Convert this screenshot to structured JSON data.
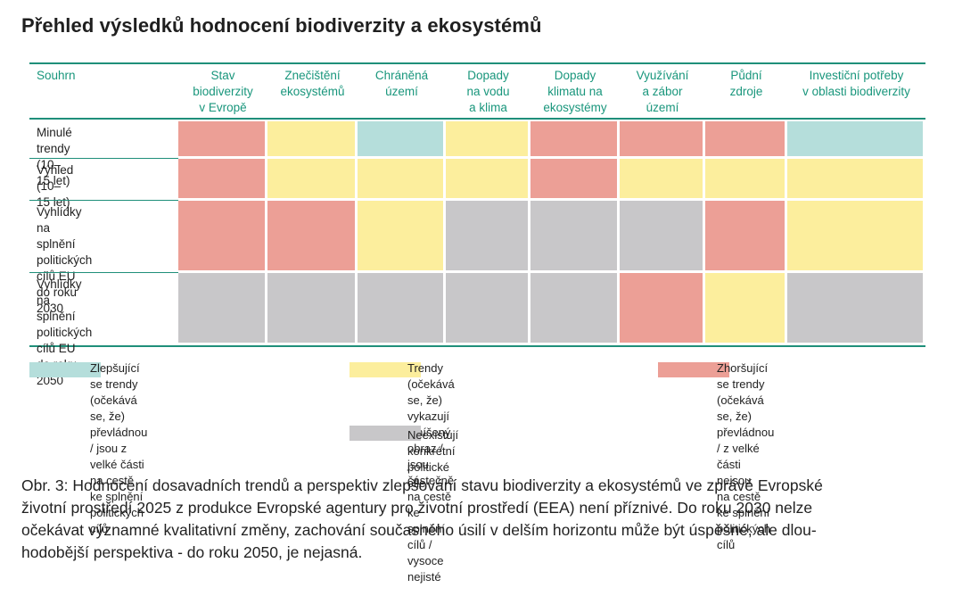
{
  "title": "Přehled výsledků hodnocení biodiverzity a ekosystémů",
  "colors": {
    "improving": "#b5dedb",
    "mixed": "#fcee9d",
    "deteriorating": "#ec9f96",
    "no_target": "#c8c7c9",
    "accent": "#19967c"
  },
  "chart_data": {
    "type": "table",
    "corner_label": "Souhrn",
    "columns": [
      "Stav\nbiodiverzity\nv Evropě",
      "Znečištění\nekosystémů",
      "Chráněná\núzemí",
      "Dopady\nna vodu\na klima",
      "Dopady\nklimatu na\nekosystémy",
      "Využívání\na zábor\núzemí",
      "Půdní\nzdroje",
      "Investiční potřeby\nv oblasti biodiverzity"
    ],
    "rows": [
      {
        "label": "Minulé trendy\n(10–15 let)",
        "values": [
          "deteriorating",
          "mixed",
          "improving",
          "mixed",
          "deteriorating",
          "deteriorating",
          "deteriorating",
          "improving"
        ]
      },
      {
        "label": "Výhled\n(10–15 let)",
        "values": [
          "deteriorating",
          "mixed",
          "mixed",
          "mixed",
          "deteriorating",
          "mixed",
          "mixed",
          "mixed"
        ]
      },
      {
        "label": "Vyhlídky na splnění\npolitických cílů EU\ndo roku 2030",
        "values": [
          "deteriorating",
          "deteriorating",
          "mixed",
          "no_target",
          "no_target",
          "no_target",
          "deteriorating",
          "mixed"
        ]
      },
      {
        "label": "Vyhlídky na splnění\npolitických cílů EU\ndo roku 2050",
        "values": [
          "no_target",
          "no_target",
          "no_target",
          "no_target",
          "no_target",
          "deteriorating",
          "mixed",
          "no_target"
        ]
      }
    ],
    "legend": [
      {
        "key": "improving",
        "label": "Zlepšující se trendy (očekává se, že)\npřevládnou / jsou z velké části\nna cestě ke splnění politických cílů"
      },
      {
        "key": "mixed",
        "label": "Trendy (očekává se, že)\nvykazují smíšený obraz / jsou částečně\nna cestě ke splnění cílů / vysoce nejisté"
      },
      {
        "key": "deteriorating",
        "label": "Zhoršující se trendy (očekává se, že)\npřevládnou / z velké části nejsou\nna cestě ke splnění politických cílů"
      },
      {
        "key": "no_target",
        "label": "Neexistují konkrétní politické cíle"
      }
    ]
  },
  "caption": [
    "Obr. 3: Hodnocení dosavadních trendů a perspektiv  zlepšování stavu biodiverzity a ekosystémů ve zprávě Evropské",
    "životní prostředí 2025 z produkce Evropské agentury pro životní prostředí (EEA) není příznivé. Do  roku 2030 nelze",
    "očekávat významné kvalitativní změny, zachování současného úsilí v delším horizontu může být úspěšné, ale dlou-",
    "hodobější perspektiva - do roku 2050, je nejasná."
  ]
}
